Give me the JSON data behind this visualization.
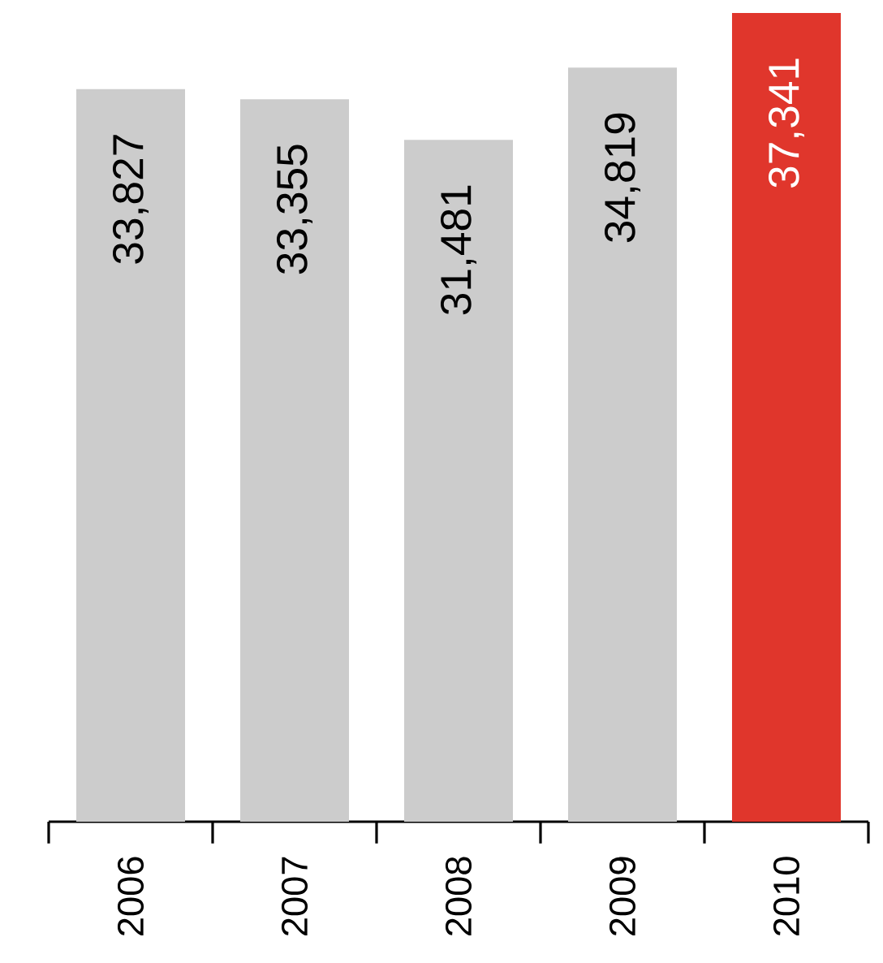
{
  "chart_data": {
    "type": "bar",
    "categories": [
      "2006",
      "2007",
      "2008",
      "2009",
      "2010"
    ],
    "values": [
      33827,
      33355,
      31481,
      34819,
      37341
    ],
    "colors": [
      "#cccccc",
      "#cccccc",
      "#cccccc",
      "#cccccc",
      "#e0362c"
    ],
    "value_labels": [
      "33,827",
      "33,355",
      "31,481",
      "34,819",
      "37,341"
    ]
  }
}
